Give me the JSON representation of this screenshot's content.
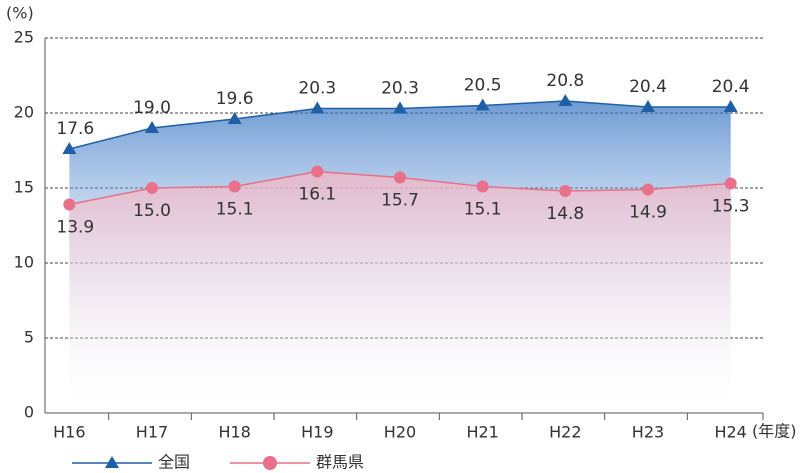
{
  "chart_data": {
    "type": "line",
    "ylabel": "(%)",
    "xlabel": "(年度)",
    "categories": [
      "H16",
      "H17",
      "H18",
      "H19",
      "H20",
      "H21",
      "H22",
      "H23",
      "H24"
    ],
    "series": [
      {
        "name": "全国",
        "color": "#1f5fa6",
        "marker": "triangle",
        "values": [
          17.6,
          19.0,
          19.6,
          20.3,
          20.3,
          20.5,
          20.8,
          20.4,
          20.4
        ],
        "value_labels": [
          "17.6",
          "19.0",
          "19.6",
          "20.3",
          "20.3",
          "20.5",
          "20.8",
          "20.4",
          "20.4"
        ]
      },
      {
        "name": "群馬県",
        "color": "#e8708a",
        "marker": "circle",
        "values": [
          13.9,
          15.0,
          15.1,
          16.1,
          15.7,
          15.1,
          14.8,
          14.9,
          15.3
        ],
        "value_labels": [
          "13.9",
          "15.0",
          "15.1",
          "16.1",
          "15.7",
          "15.1",
          "14.8",
          "14.9",
          "15.3"
        ]
      }
    ],
    "ylim": [
      0,
      25
    ],
    "yticks": [
      0,
      5,
      10,
      15,
      20,
      25
    ],
    "grid": true
  }
}
